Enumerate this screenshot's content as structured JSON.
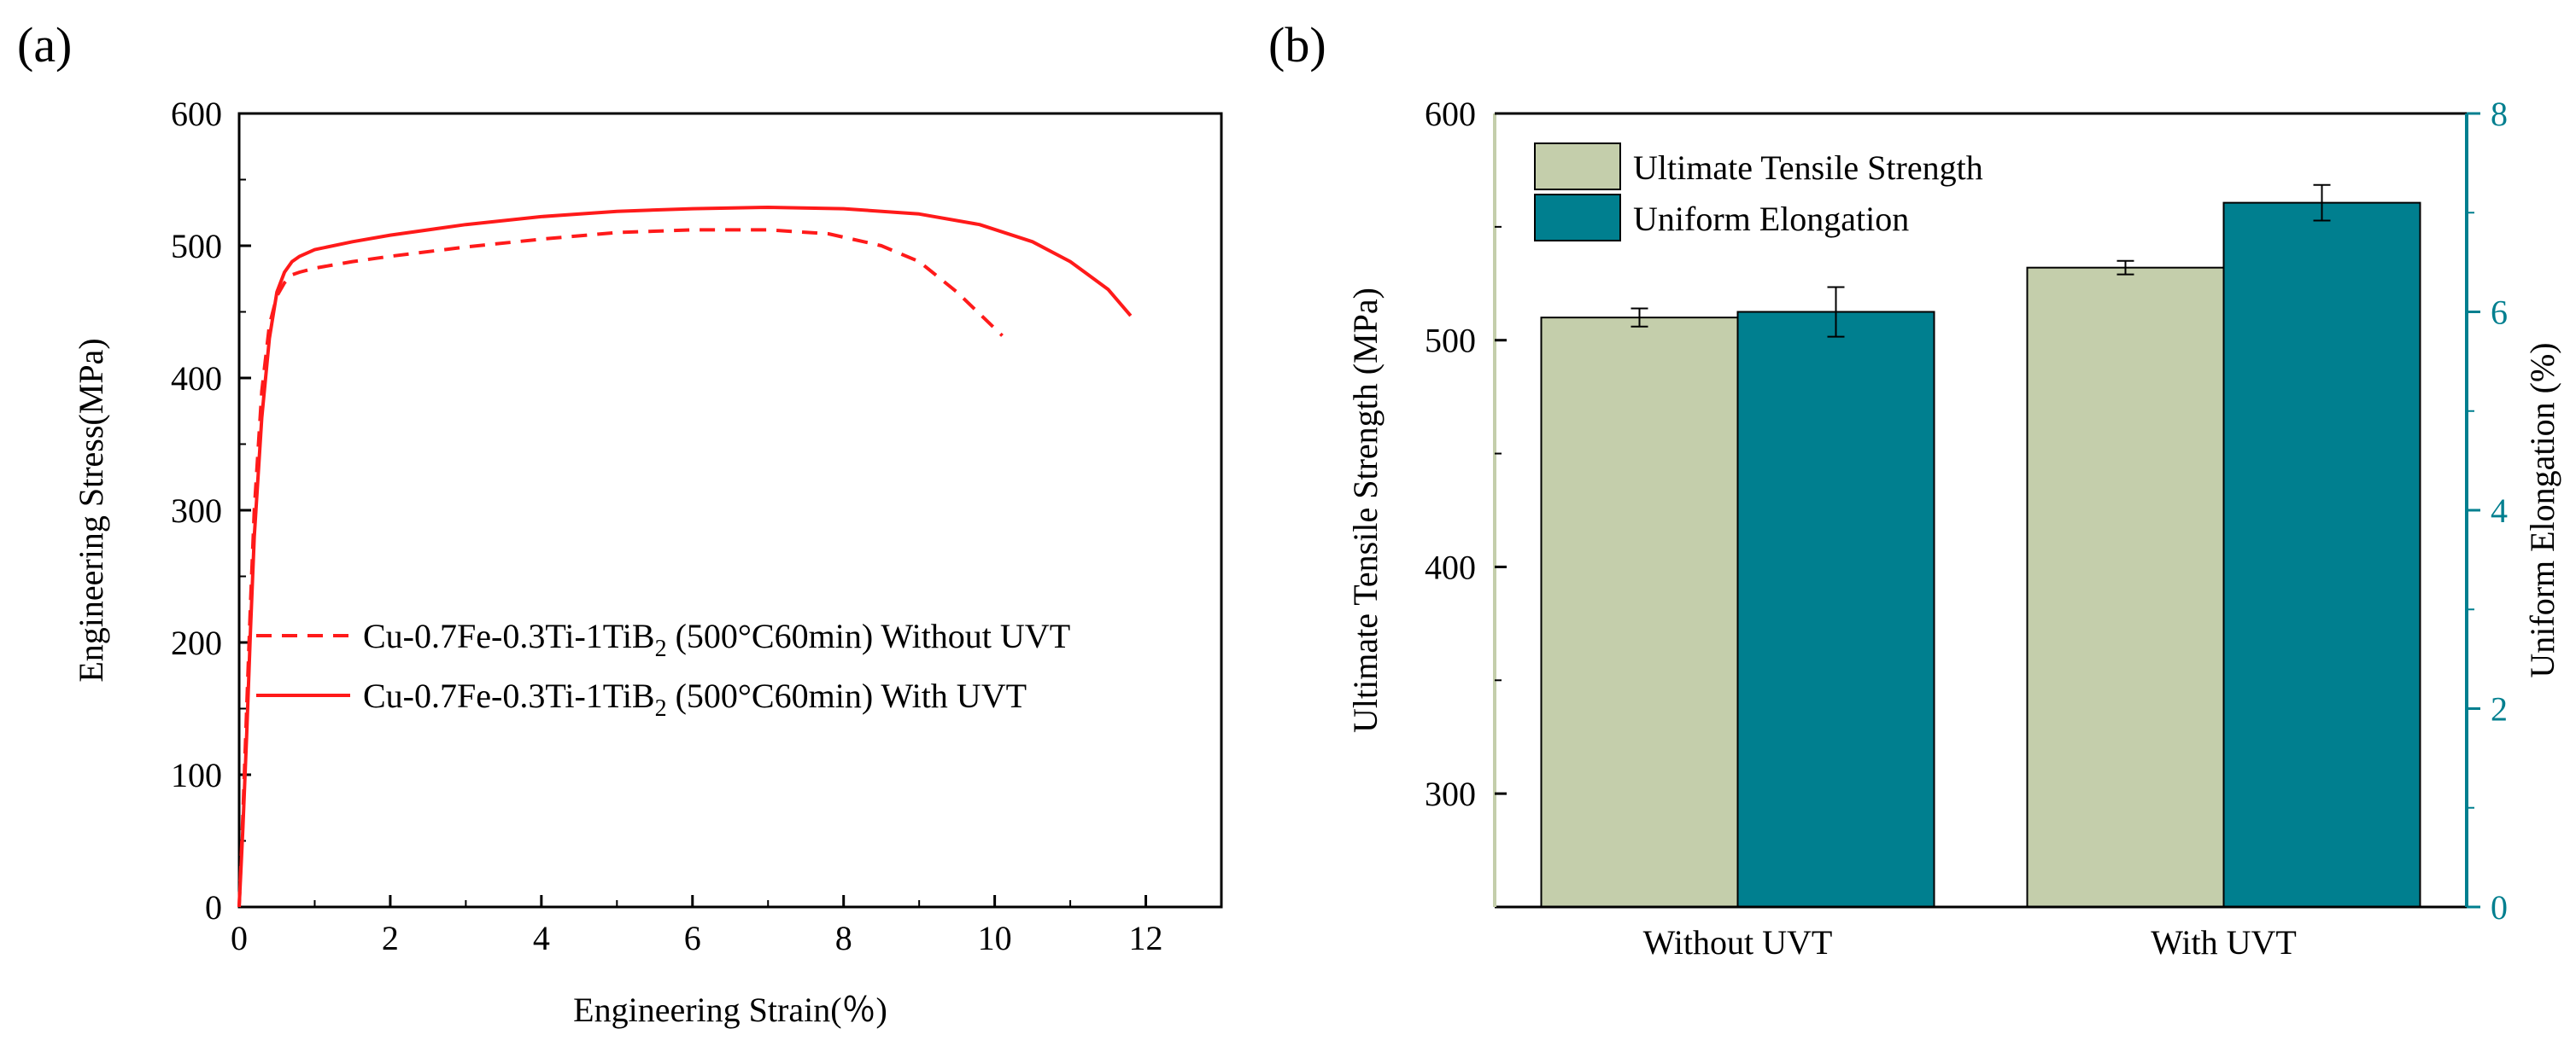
{
  "panel_a": {
    "label": "(a)",
    "chart_data": {
      "type": "line",
      "xlabel": "Engineering Strain(％)",
      "ylabel": "Engineering Stress(MPa)",
      "xlim": [
        0,
        13
      ],
      "ylim": [
        0,
        600
      ],
      "x_ticks": [
        "0",
        "2",
        "4",
        "6",
        "8",
        "10",
        "12"
      ],
      "y_ticks": [
        "0",
        "100",
        "200",
        "300",
        "400",
        "500",
        "600"
      ],
      "grid": false,
      "legend_position": "center-right",
      "series": [
        {
          "name_prefix": "Cu-0.7Fe-0.3Ti-1TiB",
          "name_sub": "2",
          "name_suffix": " (500°C60min) Without UVT",
          "style": "dashed",
          "color": "#ff1a1a",
          "x": [
            0,
            0.05,
            0.1,
            0.15,
            0.2,
            0.3,
            0.4,
            0.5,
            0.6,
            0.7,
            0.8,
            1,
            1.5,
            2,
            3,
            4,
            5,
            6,
            7,
            7.8,
            8.5,
            9,
            9.5,
            10.1
          ],
          "y": [
            0,
            70,
            150,
            230,
            300,
            390,
            440,
            462,
            472,
            478,
            480,
            483,
            488,
            492,
            499,
            505,
            510,
            512,
            512,
            509,
            500,
            488,
            465,
            432
          ]
        },
        {
          "name_prefix": "Cu-0.7Fe-0.3Ti-1TiB",
          "name_sub": "2",
          "name_suffix": " (500°C60min) With UVT",
          "style": "solid",
          "color": "#ff1a1a",
          "x": [
            0,
            0.05,
            0.1,
            0.15,
            0.2,
            0.3,
            0.4,
            0.5,
            0.6,
            0.7,
            0.8,
            1,
            1.5,
            2,
            3,
            4,
            5,
            6,
            7,
            8,
            9,
            9.8,
            10.5,
            11,
            11.5,
            11.8
          ],
          "y": [
            0,
            60,
            130,
            210,
            280,
            370,
            430,
            465,
            480,
            488,
            492,
            497,
            503,
            508,
            516,
            522,
            526,
            528,
            529,
            528,
            524,
            516,
            503,
            488,
            467,
            447
          ]
        }
      ]
    }
  },
  "panel_b": {
    "label": "(b)",
    "chart_data": {
      "type": "bar",
      "categories": [
        "Without UVT",
        "With UVT"
      ],
      "ylabel": "Ultimate Tensile Strength (MPa)",
      "y2label": "Uniform Elongation (%)",
      "ylim": [
        250,
        600
      ],
      "y2lim": [
        0,
        8
      ],
      "y_ticks": [
        "300",
        "400",
        "500",
        "600"
      ],
      "y2_ticks": [
        "0",
        "2",
        "4",
        "6",
        "8"
      ],
      "grid": false,
      "legend_position": "top-left",
      "series": [
        {
          "name": "Ultimate Tensile Strength",
          "axis": "left",
          "color": "#c4ceab",
          "values": [
            510,
            532
          ],
          "errors": [
            4,
            3
          ]
        },
        {
          "name": "Uniform Elongation",
          "axis": "right",
          "color": "#007f8f",
          "values": [
            6.0,
            7.1
          ],
          "errors": [
            0.25,
            0.18
          ]
        }
      ]
    }
  }
}
